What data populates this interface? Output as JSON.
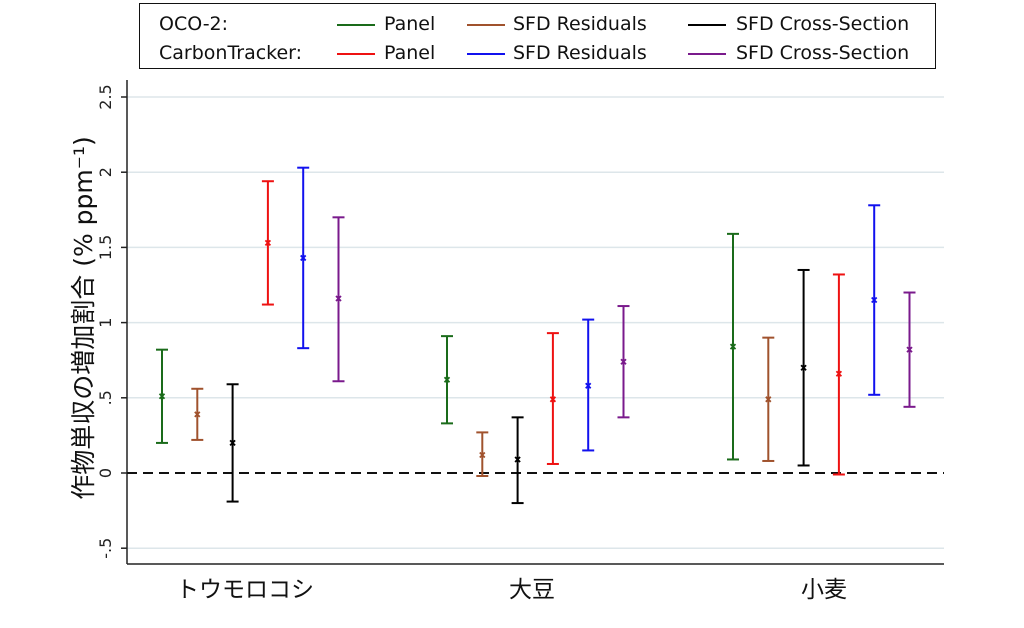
{
  "legend": {
    "group1": "OCO-2:",
    "group2": "CarbonTracker:",
    "items": [
      {
        "label": "Panel",
        "color": "#1a6b1a"
      },
      {
        "label": "SFD Residuals",
        "color": "#a0522d"
      },
      {
        "label": "SFD Cross-Section",
        "color": "#000000"
      },
      {
        "label": "Panel",
        "color": "#ee1111"
      },
      {
        "label": "SFD Residuals",
        "color": "#1111ee"
      },
      {
        "label": "SFD Cross-Section",
        "color": "#7a1a8c"
      }
    ]
  },
  "chart_data": {
    "type": "errorbar",
    "title": "",
    "ylabel": "作物単収の増加割合 (% ppm⁻¹)",
    "xlabel": "",
    "ylim": [
      -0.5,
      2.5
    ],
    "yticks": [
      -0.5,
      0,
      0.5,
      1,
      1.5,
      2,
      2.5
    ],
    "ytick_labels": [
      "-.5",
      "0",
      ".5",
      "1",
      "1.5",
      "2",
      "2.5"
    ],
    "grid": true,
    "reference_line": 0,
    "legend_position": "top",
    "categories": [
      "トウモロコシ",
      "大豆",
      "小麦"
    ],
    "series": [
      {
        "name": "OCO-2 Panel",
        "color": "#1a6b1a",
        "points": [
          {
            "y": 0.51,
            "lo": 0.2,
            "hi": 0.82
          },
          {
            "y": 0.62,
            "lo": 0.33,
            "hi": 0.91
          },
          {
            "y": 0.84,
            "lo": 0.09,
            "hi": 1.59
          }
        ]
      },
      {
        "name": "OCO-2 SFD Residuals",
        "color": "#a0522d",
        "points": [
          {
            "y": 0.39,
            "lo": 0.22,
            "hi": 0.56
          },
          {
            "y": 0.12,
            "lo": -0.02,
            "hi": 0.27
          },
          {
            "y": 0.49,
            "lo": 0.08,
            "hi": 0.9
          }
        ]
      },
      {
        "name": "OCO-2 SFD Cross-Section",
        "color": "#000000",
        "points": [
          {
            "y": 0.2,
            "lo": -0.19,
            "hi": 0.59
          },
          {
            "y": 0.09,
            "lo": -0.2,
            "hi": 0.37
          },
          {
            "y": 0.7,
            "lo": 0.05,
            "hi": 1.35
          }
        ]
      },
      {
        "name": "CarbonTracker Panel",
        "color": "#ee1111",
        "points": [
          {
            "y": 1.53,
            "lo": 1.12,
            "hi": 1.94
          },
          {
            "y": 0.49,
            "lo": 0.06,
            "hi": 0.93
          },
          {
            "y": 0.66,
            "lo": -0.01,
            "hi": 1.32
          }
        ]
      },
      {
        "name": "CarbonTracker SFD Residuals",
        "color": "#1111ee",
        "points": [
          {
            "y": 1.43,
            "lo": 0.83,
            "hi": 2.03
          },
          {
            "y": 0.58,
            "lo": 0.15,
            "hi": 1.02
          },
          {
            "y": 1.15,
            "lo": 0.52,
            "hi": 1.78
          }
        ]
      },
      {
        "name": "CarbonTracker SFD Cross-Section",
        "color": "#7a1a8c",
        "points": [
          {
            "y": 1.16,
            "lo": 0.61,
            "hi": 1.7
          },
          {
            "y": 0.74,
            "lo": 0.37,
            "hi": 1.11
          },
          {
            "y": 0.82,
            "lo": 0.44,
            "hi": 1.2
          }
        ]
      }
    ]
  }
}
